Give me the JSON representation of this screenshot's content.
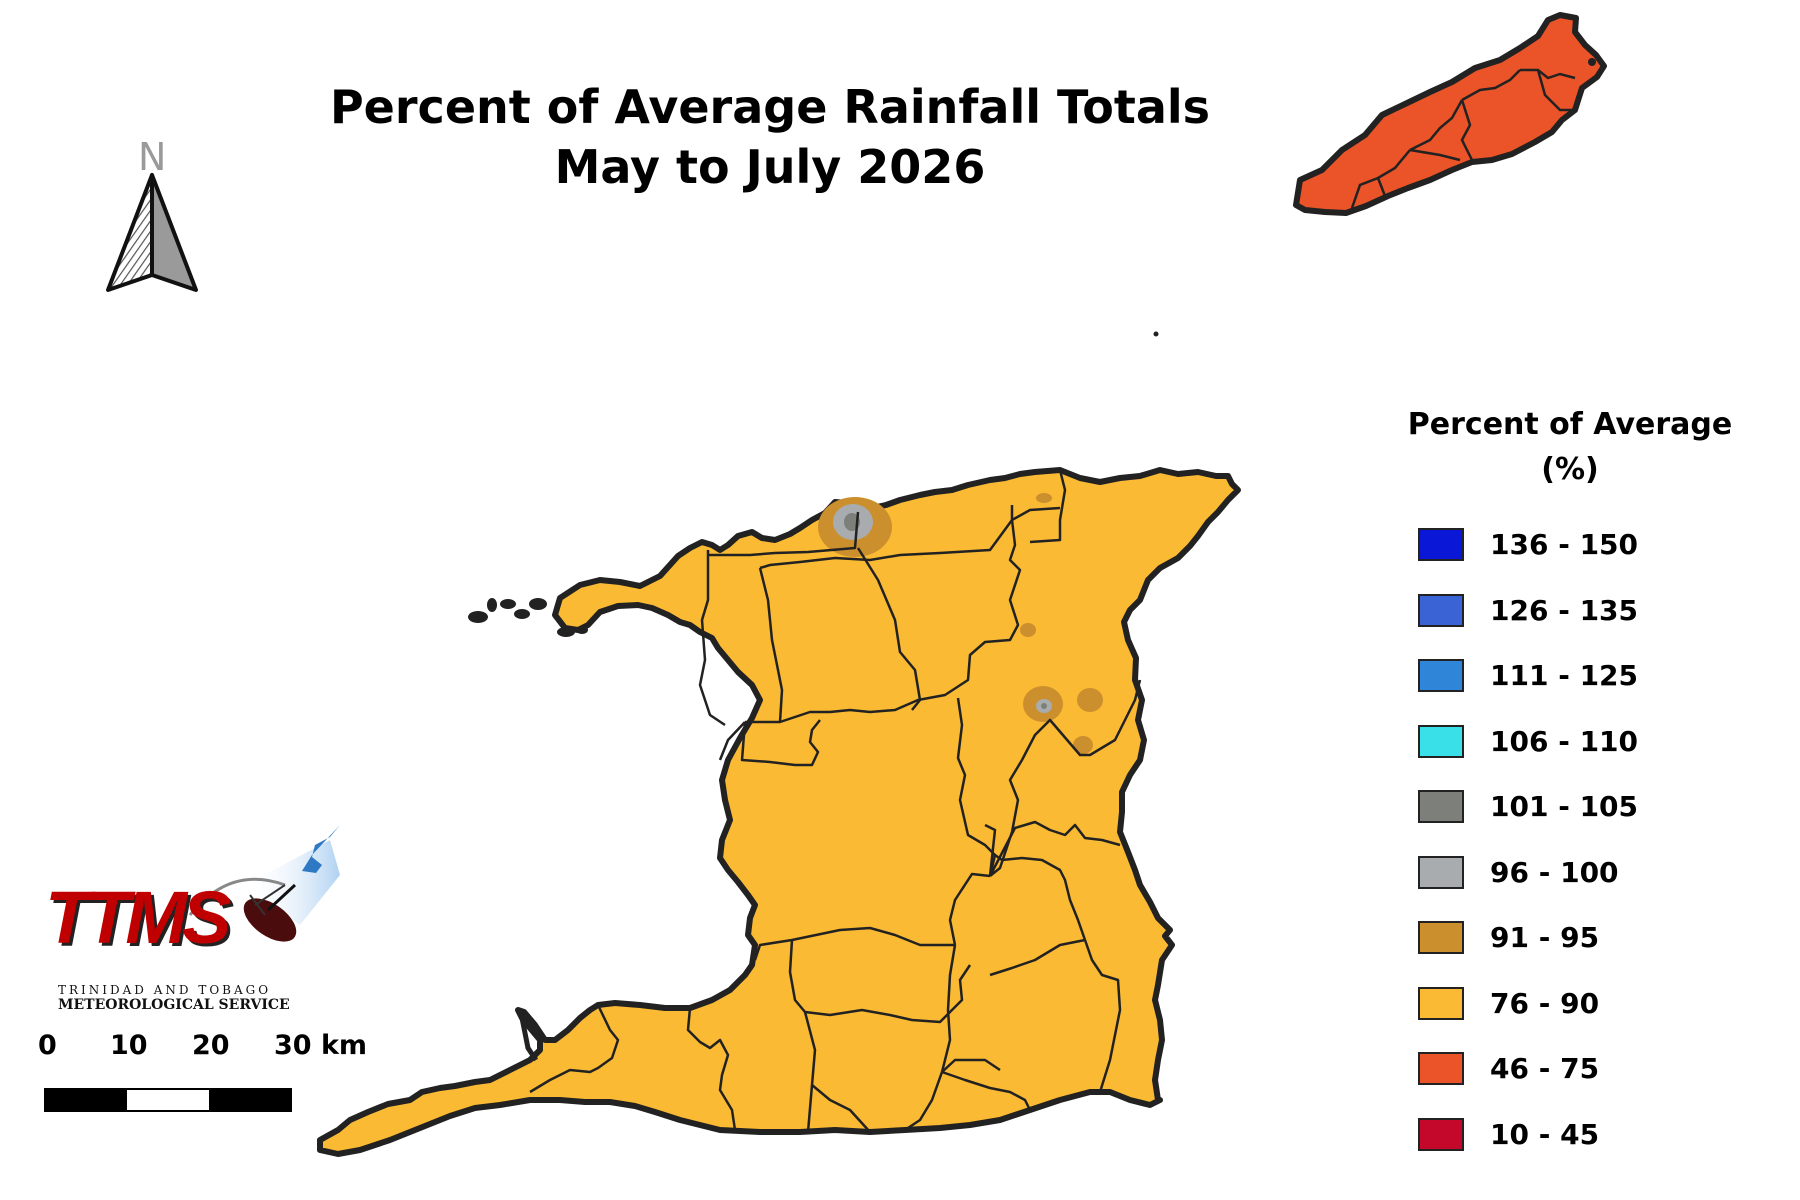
{
  "title": {
    "line1": "Percent of Average Rainfall Totals",
    "line2": "May to July 2026"
  },
  "north_arrow": {
    "label": "N"
  },
  "legend": {
    "title_line1": "Percent of Average",
    "title_line2": "(%)",
    "items": [
      {
        "label": "136 - 150",
        "color": "#0b17d6"
      },
      {
        "label": "126 - 135",
        "color": "#3a64d6"
      },
      {
        "label": "111 - 125",
        "color": "#2f86d8"
      },
      {
        "label": "106 - 110",
        "color": "#39e0e8"
      },
      {
        "label": "101 - 105",
        "color": "#7d7f7a"
      },
      {
        "label": "96 - 100",
        "color": "#a9acae"
      },
      {
        "label": "91 - 95",
        "color": "#cc8f2e"
      },
      {
        "label": "76 - 90",
        "color": "#fbba33"
      },
      {
        "label": "46 - 75",
        "color": "#ea5428"
      },
      {
        "label": "10 - 45",
        "color": "#c4082c"
      }
    ]
  },
  "scale_bar": {
    "labels": [
      "0",
      "10",
      "20",
      "30 km"
    ]
  },
  "logo": {
    "acronym": "TTMS",
    "line1": "TRINIDAD AND TOBAGO",
    "line2": "METEOROLOGICAL SERVICE"
  },
  "map": {
    "trinidad_color": "#fbba33",
    "tobago_color": "#ea5428",
    "border_color": "#222222"
  }
}
